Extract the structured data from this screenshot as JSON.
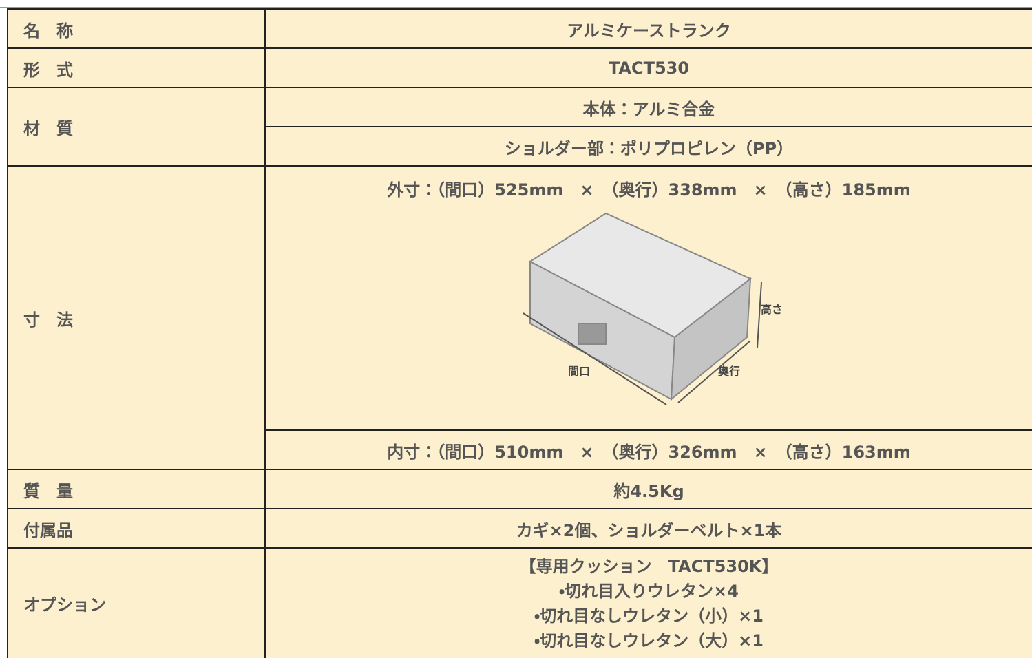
{
  "table": {
    "rows": [
      {
        "label": "名　称",
        "value": "アルミケーストランク"
      },
      {
        "label": "形　式",
        "value": "TACT530"
      },
      {
        "label": "材　質",
        "values": [
          "本体：アルミ合金",
          "ショルダー部：ポリプロピレン（PP）"
        ]
      },
      {
        "label": "寸　法",
        "outer": "外寸：（間口）525mm　×　（奥行）338mm　×　（高さ）185mm",
        "inner": "内寸：（間口）510mm　×　（奥行）326mm　×　（高さ）163mm",
        "figure": {
          "height": "高さ",
          "width": "間口",
          "depth": "奥行"
        }
      },
      {
        "label": "質　量",
        "value": "約4.5Kg"
      },
      {
        "label": "付属品",
        "value": "カギ×2個、ショルダーベルト×1本"
      },
      {
        "label": "オプション",
        "lines": [
          "【専用クッション　TACT530K】",
          "・切れ目入りウレタン×4",
          "・切れ目なしウレタン（小）×1",
          "・切れ目なしウレタン（大）×1"
        ]
      }
    ]
  }
}
